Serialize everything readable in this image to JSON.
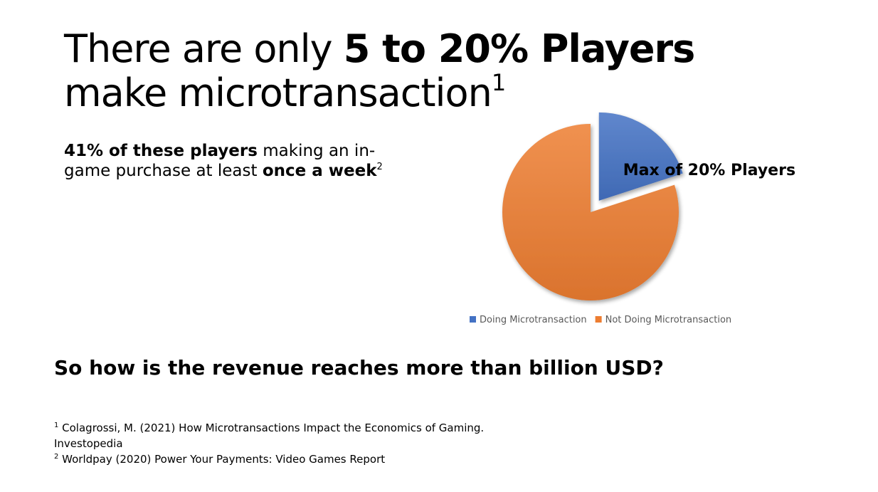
{
  "slide": {
    "title_part1": "There are only ",
    "title_bold": "5 to 20% Players",
    "title_part2": "make microtransaction",
    "title_sup": "1",
    "subtitle_bold1": "41% of these players",
    "subtitle_text1": " making an in-game purchase at least ",
    "subtitle_bold2": "once a week",
    "subtitle_sup": "2",
    "question": "So how is the revenue reaches more than billion USD?",
    "references": [
      {
        "num": "1",
        "text": "Colagrossi, M. (2021) How Microtransactions Impact the Economics of Gaming. Investopedia"
      },
      {
        "num": "2",
        "text": "Worldpay (2020) Power Your Payments: Video Games Report"
      }
    ]
  },
  "chart_data": {
    "type": "pie",
    "title": "",
    "slices": [
      {
        "name": "Doing Microtransaction",
        "value": 20,
        "color": "#4472C4",
        "exploded": true
      },
      {
        "name": "Not Doing Microtransaction",
        "value": 80,
        "color": "#ED7D31",
        "exploded": false
      }
    ],
    "data_label": "Max of 20% Players",
    "legend_position": "bottom"
  }
}
